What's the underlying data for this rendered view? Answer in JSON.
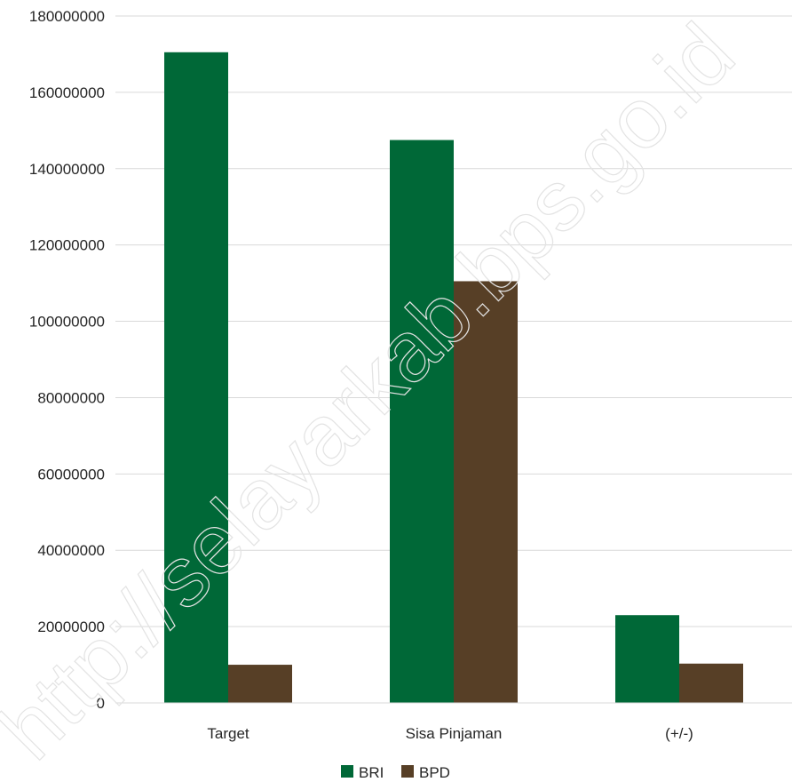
{
  "watermark": "http://selayarkab.bps.go.id",
  "chart_data": {
    "type": "bar",
    "title": "",
    "xlabel": "",
    "ylabel": "",
    "categories": [
      "Target",
      "Sisa Pinjaman",
      "(+/-)"
    ],
    "series": [
      {
        "name": "BRI",
        "color": "#006837",
        "values": [
          170500000,
          147500000,
          23000000
        ]
      },
      {
        "name": "BPD",
        "color": "#573f26",
        "values": [
          10000000,
          110500000,
          10300000
        ]
      }
    ],
    "ylim": [
      0,
      180000000
    ],
    "yticks": [
      "0",
      "20000000",
      "40000000",
      "60000000",
      "80000000",
      "100000000",
      "120000000",
      "140000000",
      "160000000",
      "180000000"
    ],
    "grid": true,
    "legend_position": "bottom"
  }
}
